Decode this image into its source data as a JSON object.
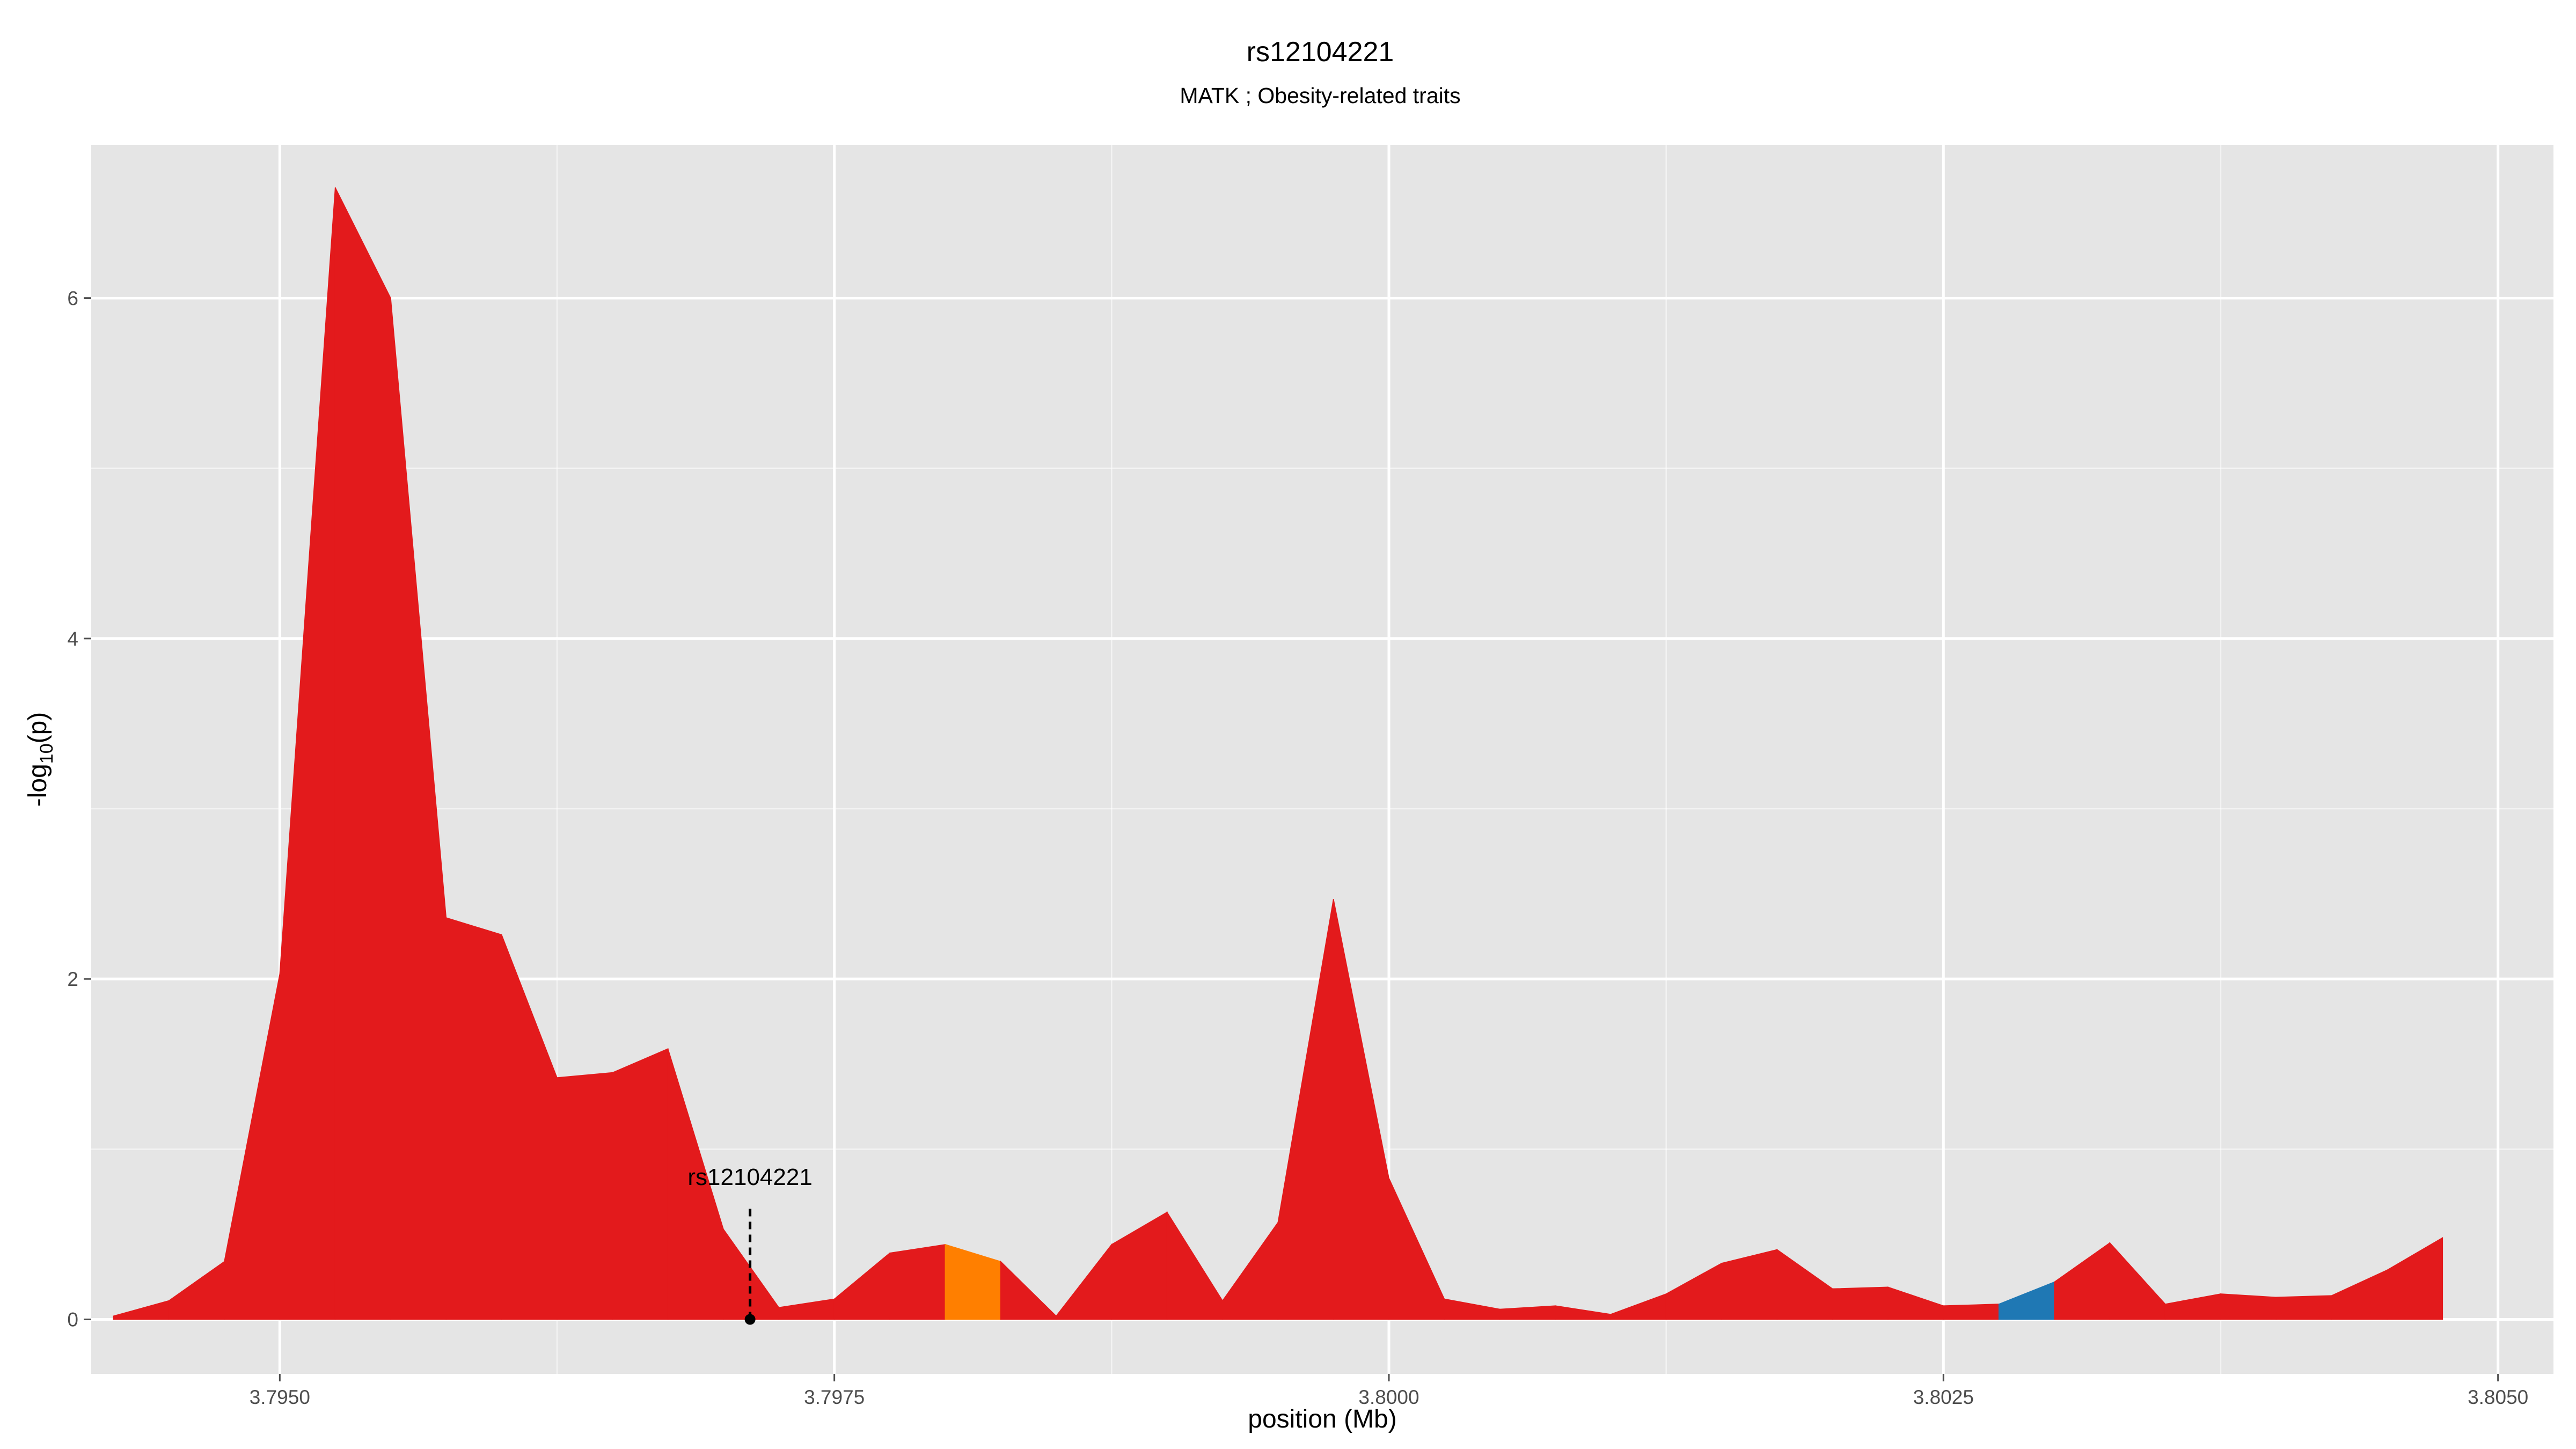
{
  "chart_data": {
    "type": "area",
    "title": "rs12104221",
    "subtitle": "MATK ; Obesity-related traits",
    "xlabel": "position (Mb)",
    "ylabel_main": "-log",
    "ylabel_sub": "10",
    "ylabel_tail": "(p)",
    "xlim": [
      3.79415,
      3.80525
    ],
    "ylim": [
      -0.32,
      6.9
    ],
    "x_ticks": [
      3.795,
      3.7975,
      3.8,
      3.8025,
      3.805
    ],
    "x_tick_labels": [
      "3.7950",
      "3.7975",
      "3.8000",
      "3.8025",
      "3.8050"
    ],
    "y_ticks": [
      0,
      2,
      4,
      6
    ],
    "y_tick_labels": [
      "0",
      "2",
      "4",
      "6"
    ],
    "grid": true,
    "panel_background": "#e5e5e5",
    "grid_color": "#ffffff",
    "x": [
      3.79425,
      3.7945,
      3.79475,
      3.795,
      3.79525,
      3.7955,
      3.79575,
      3.796,
      3.79625,
      3.7965,
      3.79675,
      3.797,
      3.79725,
      3.7975,
      3.79775,
      3.798,
      3.79825,
      3.7985,
      3.79875,
      3.799,
      3.79925,
      3.7995,
      3.79975,
      3.8,
      3.80025,
      3.8005,
      3.80075,
      3.801,
      3.80125,
      3.8015,
      3.80175,
      3.802,
      3.80225,
      3.8025,
      3.80275,
      3.803,
      3.80325,
      3.8035,
      3.80375,
      3.804,
      3.80425,
      3.8045,
      3.80475
    ],
    "y": [
      0.02,
      0.11,
      0.34,
      2.03,
      6.65,
      6.0,
      2.36,
      2.26,
      1.42,
      1.45,
      1.59,
      0.53,
      0.07,
      0.12,
      0.39,
      0.44,
      0.34,
      0.02,
      0.44,
      0.63,
      0.11,
      0.57,
      2.47,
      0.83,
      0.12,
      0.06,
      0.08,
      0.03,
      0.15,
      0.33,
      0.41,
      0.18,
      0.19,
      0.08,
      0.09,
      0.22,
      0.45,
      0.09,
      0.15,
      0.13,
      0.14,
      0.29,
      0.48
    ],
    "segment_colors": [
      {
        "from": 3.798,
        "to": 3.79825,
        "color": "#ff7f00"
      },
      {
        "from": 3.80275,
        "to": 3.803,
        "color": "#1f78b4"
      }
    ],
    "default_color": "#e31a1c",
    "highlight": {
      "label": "rs12104221",
      "x": 3.79712,
      "y": 0,
      "line_top": 0.67
    }
  }
}
